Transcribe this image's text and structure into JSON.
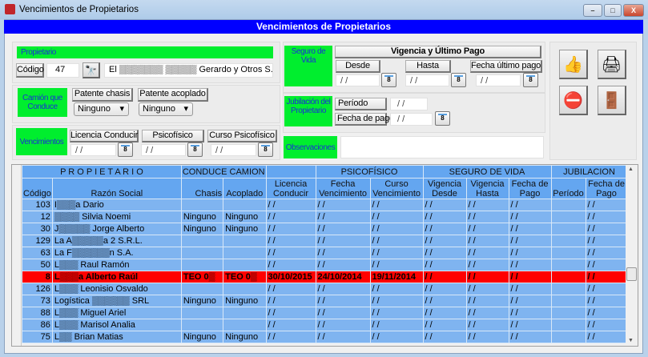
{
  "window": {
    "title": "Vencimientos de Propietarios",
    "controls": [
      "–",
      "□",
      "X"
    ]
  },
  "banner": "Vencimientos de Propietarios",
  "propietario": {
    "label": "Propietario",
    "codigo_label": "Código",
    "codigo": "47",
    "nombre": "El ▒▒▒▒▒▒▒ ▒▒▒▒▒ Gerardo y Otros S.H."
  },
  "camion": {
    "label": "Camión que Conduce",
    "chasis_label": "Patente chasis",
    "chasis_value": "Ninguno",
    "acoplado_label": "Patente acoplado",
    "acoplado_value": "Ninguno"
  },
  "vencimientos": {
    "label": "Vencimientos",
    "licencia_label": "Licencia Conducir",
    "licencia": "/ /",
    "psico_label": "Psicofísico",
    "psico": "/ /",
    "curso_label": "Curso Psicofísico",
    "curso": "/ /"
  },
  "seguro": {
    "label": "Seguro de Vida",
    "header": "Vigencia y Último Pago",
    "desde_label": "Desde",
    "desde": "/ /",
    "hasta_label": "Hasta",
    "hasta": "/ /",
    "pago_label": "Fecha último pago",
    "pago": "/ /"
  },
  "jubilacion": {
    "label": "Jubilación del Propietario",
    "periodo_label": "Período",
    "periodo": "/ /",
    "fecha_label": "Fecha de pago",
    "fecha": "/ /"
  },
  "observaciones": {
    "label": "Observaciones",
    "value": ""
  },
  "calendar_glyph": "8",
  "grid": {
    "groups": [
      "P R O P I E T A R I O",
      "CONDUCE CAMION",
      "",
      "PSICOFÍSICO",
      "SEGURO DE VIDA",
      "JUBILACION"
    ],
    "columns": [
      "Código",
      "Razón Social",
      "Chasis",
      "Acoplado",
      "Licencia Conducir",
      "Fecha Vencimiento",
      "Curso Vencimiento",
      "Vigencia Desde",
      "Vigencia Hasta",
      "Fecha de Pago",
      "Período",
      "Fecha de Pago"
    ],
    "selected_row": 6,
    "selected_color": "#ff0000",
    "rows": [
      [
        "103",
        "I▒▒▒a Dario",
        "",
        "",
        "/ /",
        "/ /",
        "/ /",
        "/ /",
        "/ /",
        "/ /",
        "",
        "/ /"
      ],
      [
        "12",
        "▒▒▒▒ Silvia Noemi",
        "Ninguno",
        "Ninguno",
        "/ /",
        "/ /",
        "/ /",
        "/ /",
        "/ /",
        "/ /",
        "",
        "/ /"
      ],
      [
        "30",
        "J▒▒▒▒▒ Jorge Alberto",
        "Ninguno",
        "Ninguno",
        "/ /",
        "/ /",
        "/ /",
        "/ /",
        "/ /",
        "/ /",
        "",
        "/ /"
      ],
      [
        "129",
        "La A▒▒▒▒▒a 2 S.R.L.",
        "",
        "",
        "/ /",
        "/ /",
        "/ /",
        "/ /",
        "/ /",
        "/ /",
        "",
        "/ /"
      ],
      [
        "63",
        "La F▒▒▒▒▒▒n S.A.",
        "",
        "",
        "/ /",
        "/ /",
        "/ /",
        "/ /",
        "/ /",
        "/ /",
        "",
        "/ /"
      ],
      [
        "50",
        "L▒▒▒ Raul Ramón",
        "",
        "",
        "/ /",
        "/ /",
        "/ /",
        "/ /",
        "/ /",
        "/ /",
        "",
        "/ /"
      ],
      [
        "8",
        "L▒▒▒a Alberto Raúl",
        "TEO 0▒",
        "TEO 0▒",
        "30/10/2015",
        "24/10/2014",
        "19/11/2014",
        "/ /",
        "/ /",
        "/ /",
        "",
        "/ /"
      ],
      [
        "126",
        "L▒▒▒ Leonisio Osvaldo",
        "",
        "",
        "/ /",
        "/ /",
        "/ /",
        "/ /",
        "/ /",
        "/ /",
        "",
        "/ /"
      ],
      [
        "73",
        "Logística ▒▒▒▒▒▒ SRL",
        "Ninguno",
        "Ninguno",
        "/ /",
        "/ /",
        "/ /",
        "/ /",
        "/ /",
        "/ /",
        "",
        "/ /"
      ],
      [
        "88",
        "L▒▒▒ Miguel Ariel",
        "",
        "",
        "/ /",
        "/ /",
        "/ /",
        "/ /",
        "/ /",
        "/ /",
        "",
        "/ /"
      ],
      [
        "86",
        "L▒▒▒ Marisol Analia",
        "",
        "",
        "/ /",
        "/ /",
        "/ /",
        "/ /",
        "/ /",
        "/ /",
        "",
        "/ /"
      ],
      [
        "75",
        "L▒▒ Brian  Matias",
        "Ninguno",
        "Ninguno",
        "/ /",
        "/ /",
        "/ /",
        "/ /",
        "/ /",
        "/ /",
        "",
        "/ /"
      ]
    ]
  }
}
